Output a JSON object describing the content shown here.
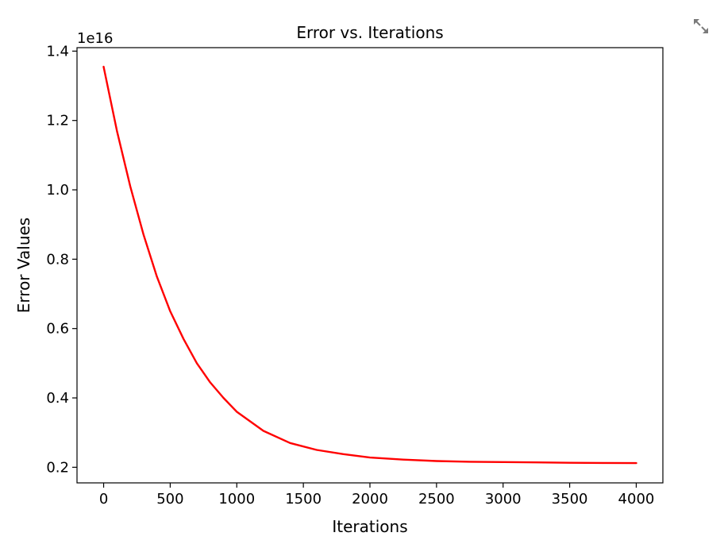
{
  "toolbar": {
    "expand_icon": "expand-arrows-icon"
  },
  "chart_data": {
    "type": "line",
    "title": "Error vs. Iterations",
    "xlabel": "Iterations",
    "ylabel": "Error Values",
    "y_offset_label": "1e16",
    "xlim": [
      -200,
      4200
    ],
    "ylim": [
      0.155,
      1.41
    ],
    "x_ticks": [
      0,
      500,
      1000,
      1500,
      2000,
      2500,
      3000,
      3500,
      4000
    ],
    "x_tick_labels": [
      "0",
      "500",
      "1000",
      "1500",
      "2000",
      "2500",
      "3000",
      "3500",
      "4000"
    ],
    "y_ticks": [
      0.2,
      0.4,
      0.6,
      0.8,
      1.0,
      1.2,
      1.4
    ],
    "y_tick_labels": [
      "0.2",
      "0.4",
      "0.6",
      "0.8",
      "1.0",
      "1.2",
      "1.4"
    ],
    "grid": false,
    "series": [
      {
        "color": "#ff0000",
        "x": [
          0,
          100,
          200,
          300,
          400,
          500,
          600,
          700,
          800,
          900,
          1000,
          1200,
          1400,
          1600,
          1800,
          2000,
          2250,
          2500,
          2750,
          3000,
          3250,
          3500,
          3750,
          4000
        ],
        "y": [
          1.355,
          1.17,
          1.01,
          0.87,
          0.75,
          0.65,
          0.57,
          0.5,
          0.445,
          0.4,
          0.36,
          0.305,
          0.27,
          0.25,
          0.238,
          0.228,
          0.222,
          0.218,
          0.216,
          0.215,
          0.214,
          0.213,
          0.2125,
          0.212
        ]
      }
    ]
  }
}
